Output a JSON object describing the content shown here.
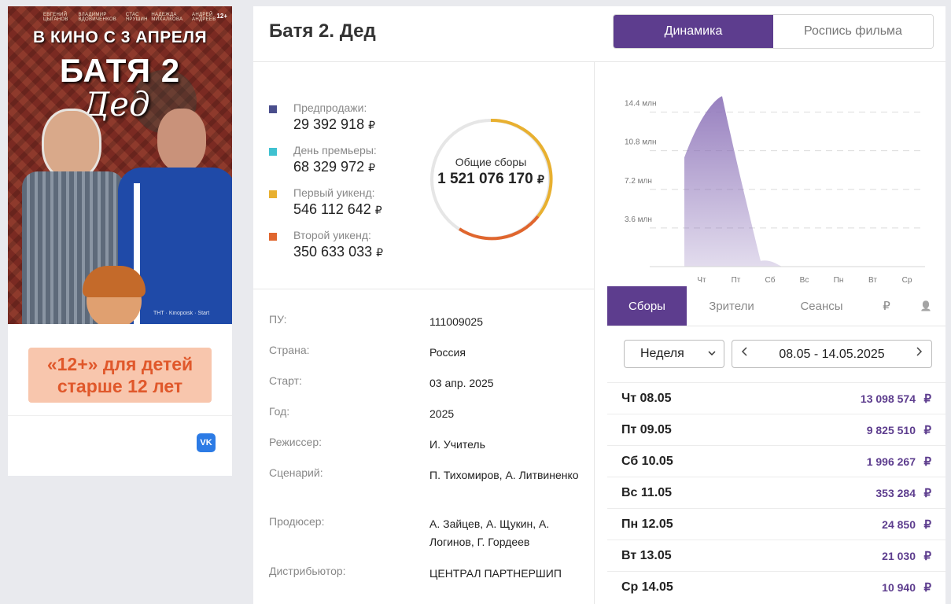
{
  "poster": {
    "names": [
      "ЕВГЕНИЙ ЦЫГАНОВ",
      "ВЛАДИМИР ВДОВИЧЕНКОВ",
      "СТАС ЯРУШИН",
      "НАДЕЖДА МИХАЛКОВА",
      "АНДРЕЙ АНДРЕЕВ"
    ],
    "age": "12+",
    "date": "В КИНО С 3 АПРЕЛЯ",
    "title": "БАТЯ 2",
    "subtitle": "Дед",
    "logos": "ТНТ · Kinopoisk · Start"
  },
  "age_badge": "«12+» для детей старше 12 лет",
  "vk_label": "VK",
  "film": {
    "title": "Батя 2. Дед"
  },
  "view_tabs": {
    "active": "Динамика",
    "inactive": "Роспись фильма"
  },
  "stats": {
    "items": [
      {
        "label": "Предпродажи:",
        "value": "29 392 918",
        "color": "#4a4e8c"
      },
      {
        "label": "День премьеры:",
        "value": "68 329 972",
        "color": "#3fc1d0"
      },
      {
        "label": "Первый уикенд:",
        "value": "546 112 642",
        "color": "#e8b030"
      },
      {
        "label": "Второй уикенд:",
        "value": "350 633 033",
        "color": "#e0662e"
      }
    ],
    "currency": "₽",
    "total_label": "Общие сборы",
    "total_value": "1 521 076 170"
  },
  "info": [
    {
      "key": "ПУ:",
      "value": "111009025"
    },
    {
      "key": "Страна:",
      "value": "Россия"
    },
    {
      "key": "Старт:",
      "value": "03 апр. 2025"
    },
    {
      "key": "Год:",
      "value": "2025"
    },
    {
      "key": "Режиссер:",
      "value": "И. Учитель"
    },
    {
      "key": "Сценарий:",
      "value": "П. Тихомиров, А. Литвиненко"
    },
    {
      "key": "Продюсер:",
      "value": "А. Зайцев, А. Щукин, А. Логинов, Г. Гордеев"
    },
    {
      "key": "Дистрибьютор:",
      "value": "ЦЕНТРАЛ ПАРТНЕРШИП"
    }
  ],
  "chart_data": {
    "type": "area",
    "categories": [
      "Чт",
      "Пт",
      "Сб",
      "Вс",
      "Пн",
      "Вт",
      "Ср"
    ],
    "y_ticks": [
      "3.6 млн",
      "7.2 млн",
      "10.8 млн",
      "14.4 млн"
    ],
    "y_tick_values": [
      3.6,
      7.2,
      10.8,
      14.4
    ],
    "ylim": [
      0,
      16.2
    ],
    "series": [
      {
        "values": [
          13.1,
          9.83,
          2.0,
          0.35,
          0.025,
          0.021,
          0.011
        ]
      }
    ],
    "grid": true,
    "color": "#8c72b8"
  },
  "data_tabs": {
    "revenue": "Сборы",
    "viewers": "Зрители",
    "sessions": "Сеансы",
    "ruble": "₽",
    "person": "👤"
  },
  "period": {
    "selected": "Неделя",
    "range": "08.05 - 14.05.2025"
  },
  "daily": [
    {
      "day": "Чт 08.05",
      "amount": "13 098 574"
    },
    {
      "day": "Пт 09.05",
      "amount": "9 825 510"
    },
    {
      "day": "Сб 10.05",
      "amount": "1 996 267"
    },
    {
      "day": "Вс 11.05",
      "amount": "353 284"
    },
    {
      "day": "Пн 12.05",
      "amount": "24 850"
    },
    {
      "day": "Вт 13.05",
      "amount": "21 030"
    },
    {
      "day": "Ср 14.05",
      "amount": "10 940"
    }
  ],
  "colors": {
    "accent": "#5d3d8e",
    "age_badge_bg": "#f8c6ad",
    "age_badge_text": "#e0582b"
  }
}
